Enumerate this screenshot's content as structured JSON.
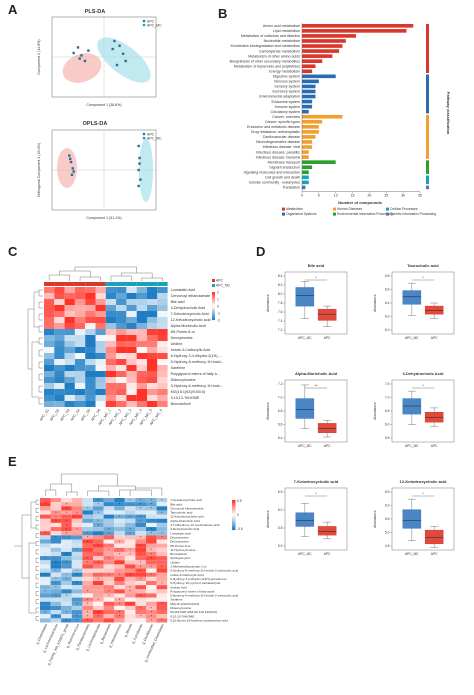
{
  "panels": {
    "A": "A",
    "B": "B",
    "C": "C",
    "D": "D",
    "E": "E"
  },
  "colors": {
    "apc": "#1f77b4",
    "apc_mc": "#17a2b8",
    "red": "#d9372a",
    "blue": "#3575b5",
    "orange": "#f0a030",
    "green": "#2ca02c",
    "cyan_group": "#48b8c8"
  },
  "plsda": {
    "title": "PLS-DA",
    "xlabel": "Component 1 (38.8%)",
    "ylabel": "Component 2 (14.6%)",
    "legend": [
      "APC",
      "APC_MC"
    ],
    "apc_points": [
      [
        -35,
        5
      ],
      [
        -30,
        12
      ],
      [
        -26,
        2
      ],
      [
        -22,
        -5
      ],
      [
        -18,
        8
      ],
      [
        -28,
        -2
      ]
    ],
    "apc_mc_points": [
      [
        12,
        20
      ],
      [
        18,
        14
      ],
      [
        22,
        4
      ],
      [
        25,
        -5
      ],
      [
        15,
        -10
      ],
      [
        10,
        10
      ]
    ]
  },
  "oplsda": {
    "title": "OPLS-DA",
    "xlabel": "Component 1 (31.1%)",
    "ylabel": "Orthogonal Component 1 (20.4%)",
    "legend": [
      "APC",
      "APC_MC"
    ],
    "apc_points": [
      [
        -40,
        18
      ],
      [
        -38,
        10
      ],
      [
        -36,
        2
      ],
      [
        -37,
        -6
      ],
      [
        -39,
        14
      ],
      [
        -35,
        -2
      ]
    ],
    "apc_mc_points": [
      [
        40,
        30
      ],
      [
        41,
        15
      ],
      [
        40,
        0
      ],
      [
        42,
        -12
      ],
      [
        40,
        -20
      ],
      [
        41,
        8
      ]
    ]
  },
  "pathway": {
    "xlabel": "Number of compounds",
    "side_label": "Pathway classification",
    "categories": [
      {
        "name": "Amino acid metabolism",
        "value": 33,
        "group": 0
      },
      {
        "name": "Lipid metabolism",
        "value": 31,
        "group": 0
      },
      {
        "name": "Metabolism of cofactors and vitamins",
        "value": 16,
        "group": 0
      },
      {
        "name": "Nucleotide metabolism",
        "value": 13,
        "group": 0
      },
      {
        "name": "Xenobiotics biodegradation and metabolism",
        "value": 12,
        "group": 0
      },
      {
        "name": "Carbohydrate metabolism",
        "value": 11,
        "group": 0
      },
      {
        "name": "Metabolism of other amino acids",
        "value": 9,
        "group": 0
      },
      {
        "name": "Biosynthesis of other secondary metabolites",
        "value": 6,
        "group": 0
      },
      {
        "name": "Metabolism of terpenoids and polyketides",
        "value": 4,
        "group": 0
      },
      {
        "name": "Energy metabolism",
        "value": 3,
        "group": 0
      },
      {
        "name": "Digestive system",
        "value": 10,
        "group": 1
      },
      {
        "name": "Nervous system",
        "value": 5,
        "group": 1
      },
      {
        "name": "Sensory system",
        "value": 4,
        "group": 1
      },
      {
        "name": "Excretory system",
        "value": 4,
        "group": 1
      },
      {
        "name": "Environmental adaptation",
        "value": 4,
        "group": 1
      },
      {
        "name": "Endocrine system",
        "value": 3,
        "group": 1
      },
      {
        "name": "Immune system",
        "value": 3,
        "group": 1
      },
      {
        "name": "Circulatory system",
        "value": 2,
        "group": 1
      },
      {
        "name": "Cancer: overview",
        "value": 12,
        "group": 2
      },
      {
        "name": "Cancer: specific types",
        "value": 6,
        "group": 2
      },
      {
        "name": "Endocrine and metabolic disease",
        "value": 5,
        "group": 2
      },
      {
        "name": "Drug resistance: antineoplastic",
        "value": 5,
        "group": 2
      },
      {
        "name": "Cardiovascular disease",
        "value": 4,
        "group": 2
      },
      {
        "name": "Neurodegenerative disease",
        "value": 3,
        "group": 2
      },
      {
        "name": "Infectious disease: viral",
        "value": 3,
        "group": 2
      },
      {
        "name": "Infectious disease: parasitic",
        "value": 2,
        "group": 2
      },
      {
        "name": "Infectious disease: bacterial",
        "value": 2,
        "group": 2
      },
      {
        "name": "Membrane transport",
        "value": 10,
        "group": 3
      },
      {
        "name": "Signal transduction",
        "value": 3,
        "group": 3
      },
      {
        "name": "Signaling molecules and interaction",
        "value": 2,
        "group": 3
      },
      {
        "name": "Cell growth and death",
        "value": 2,
        "group": 4
      },
      {
        "name": "Cellular community - eukaryotes",
        "value": 2,
        "group": 4
      },
      {
        "name": "Translation",
        "value": 1,
        "group": 5
      }
    ],
    "groups": [
      "Metabolism",
      "Organismal Systems",
      "Human Diseases",
      "Environmental Information Processing",
      "Cellular Processes",
      "Genetic Information Processing"
    ],
    "group_colors": [
      "#d9372a",
      "#2b6cb0",
      "#f0a030",
      "#2ca02c",
      "#17a2b8",
      "#5b6fb5"
    ],
    "ticks": [
      0,
      5,
      10,
      15,
      20,
      25,
      30,
      35
    ]
  },
  "heatmap_c": {
    "legend": [
      "APC",
      "APC_MC"
    ],
    "scale_ticks": [
      "2",
      "1",
      "0",
      "-1",
      "-2"
    ],
    "rows": [
      "Lovastatin acid",
      "Cervonoyl ethanolamide",
      "Bile acid",
      "3-Dehydrocholic Acid",
      "7-Ketodeoxycholic Acid",
      "12-Ketodeoxycholic acid",
      "Alpha-Muricholic Acid",
      "8H-Purine-8-ol",
      "Deoxyinosine",
      "Uridine",
      "Indole-3-Carboxylic Acid",
      "6-Hydroxy-3,4-dihydro-2(1H)-...",
      "5-Hydroxy-6-methoxy-1H-indol...",
      "Xanthine",
      "Polyglycerol esters of fatty a...",
      "Dideoxyinosine",
      "5-Hydroxy-6-methoxy-1H-indo...",
      "MG(16:1(9Z)/0:0/0:0)",
      "9,10,13-TriHOME",
      "Brincidofovir"
    ],
    "cols": [
      "APC_S1",
      "APC_S2",
      "APC_S3",
      "APC_S4",
      "APC_S5",
      "APC_S6",
      "APC_MC_1",
      "APC_MC_2",
      "APC_MC_3",
      "APC_MC_4",
      "APC_MC_5",
      "APC_MC_6"
    ]
  },
  "boxplots": [
    {
      "title": "Bile acid",
      "ylabel": "Abundance",
      "groups": [
        "APC_MC",
        "APC"
      ],
      "yticks": [
        "8.4",
        "8.2",
        "8.0",
        "7.8",
        "7.6",
        "7.4",
        "7.2"
      ],
      "sig": "*"
    },
    {
      "title": "Taurocholic acid",
      "ylabel": "Abundance",
      "groups": [
        "APC_MC",
        "APC"
      ],
      "yticks": [
        "6.8",
        "6.6",
        "6.4",
        "6.2",
        "6.0"
      ],
      "sig": "*"
    },
    {
      "title": "Alpha-Muricholic Acid",
      "ylabel": "Abundance",
      "groups": [
        "APC_MC",
        "APC"
      ],
      "yticks": [
        "7.2",
        "7.0",
        "6.8",
        "6.6",
        "6.4"
      ],
      "sig": "**"
    },
    {
      "title": "3-Dehydrocholic Acid",
      "ylabel": "Abundance",
      "groups": [
        "APC_MC",
        "APC"
      ],
      "yticks": [
        "7.5",
        "7.0",
        "6.5",
        "6.0",
        "5.5"
      ],
      "sig": "*"
    },
    {
      "title": "7-Ketodeoxycholic acid",
      "ylabel": "Abundance",
      "groups": [
        "APC_MC",
        "APC"
      ],
      "yticks": [
        "6.5",
        "6.0",
        "5.5",
        "5.0"
      ],
      "sig": "*"
    },
    {
      "title": "12-Ketodeoxycholic acid",
      "ylabel": "Abundance",
      "groups": [
        "APC_MC",
        "APC"
      ],
      "yticks": [
        "6.5",
        "6.0",
        "5.5",
        "5.0",
        "4.5"
      ],
      "sig": "*"
    }
  ],
  "heatmap_e": {
    "scale_ticks": [
      "0.5",
      "0",
      "-0.5"
    ],
    "rows": [
      "7-Ketodeoxycholic acid",
      "Bile acid",
      "Cervonoyl ethanolamide",
      "Taurocholic acid",
      "12-Ketodeoxycholic acid",
      "Alpha-Muricholic Acid",
      "3,7-Dihydroxy-12-oxocholanoic acid",
      "3-Dehydrocholic Acid",
      "Lovastatin acid",
      "Deoxyinosine",
      "Deoxyinosine",
      "8H-Purine-8-ol",
      "11-Hydroxyinosine",
      "Brincidofovir",
      "Sphingomyelin",
      "Uridine",
      "1-Methylsulfanyloctan-1-ol",
      "6-Hydroxy-5-methoxy-1H-indole-2-carboxylic acid",
      "Indole-3-Carboxylic Acid",
      "6-Hydroxy-3,4-dihydro-2(1H)-quinolinone",
      "5-Hydroxy-1H-pyrrol-2-carbaldehyde",
      "Azelaic Acid",
      "Polyglycerol esters of fatty acids",
      "5-Hydroxy-6-methoxy-1H-indole-2-carboxylic acid",
      "Xanthine",
      "MG(16:1(9Z)/0:0/0:0)",
      "Dideoxyinosine",
      "DG(16:0/20:4(5Z,8Z,11Z,14Z)/0:0)",
      "9,10,13-TriHOME",
      "9,10-Epoxy-18-hydroxy-octadecanoic acid"
    ],
    "cols": [
      "g_Clostridiales",
      "g_Lachnoclostridium",
      "g_Family_XIII_AD3011_group",
      "g_Ruminococcus",
      "g_Parabacteroides",
      "g_Lachnospiraceae",
      "g_Bacteroides",
      "g_Intestinimonas",
      "g_Blautia",
      "g_Turicibacter",
      "g_Oscillibacter",
      "g_unclassified_Clostridiales"
    ]
  }
}
